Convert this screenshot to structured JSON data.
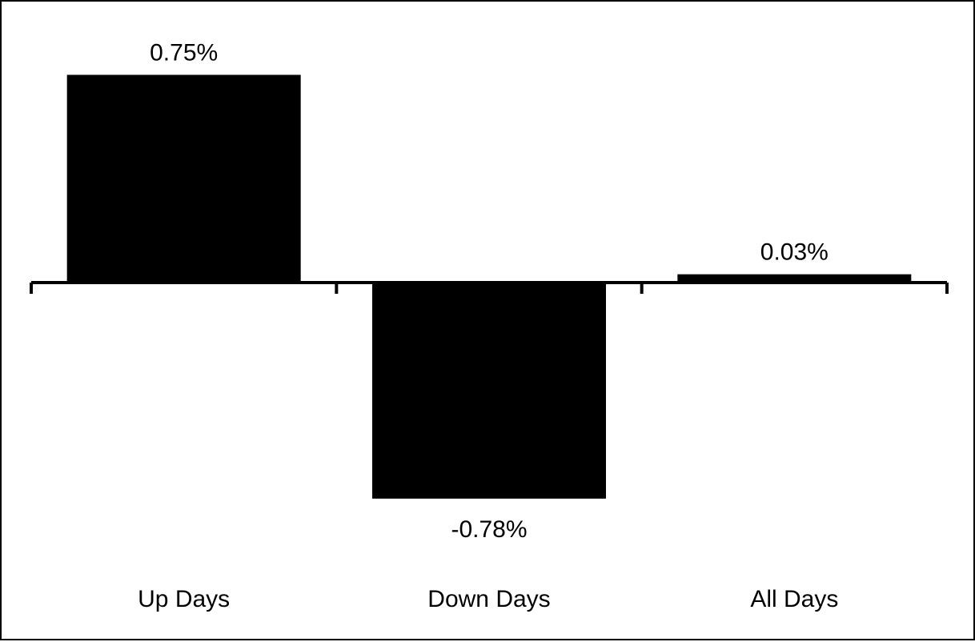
{
  "chart_data": {
    "type": "bar",
    "categories": [
      "Up Days",
      "Down Days",
      "All Days"
    ],
    "values": [
      0.75,
      -0.78,
      0.03
    ],
    "data_labels": [
      "0.75%",
      "-0.78%",
      "0.03%"
    ],
    "title": "",
    "xlabel": "",
    "ylabel": "",
    "ylim": [
      -0.8,
      0.8
    ],
    "grid": false,
    "legend": "none",
    "bar_color": "#000000"
  }
}
